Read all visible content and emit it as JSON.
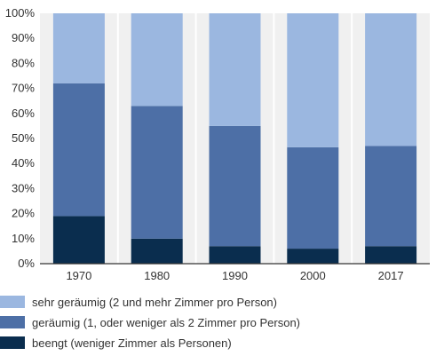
{
  "chart_data": {
    "type": "bar",
    "stacked": true,
    "categories": [
      "1970",
      "1980",
      "1990",
      "2000",
      "2017"
    ],
    "series": [
      {
        "name": "beengt (weniger Zimmer als Personen)",
        "color": "#0a2d4e",
        "values": [
          19,
          10,
          7,
          6,
          7
        ]
      },
      {
        "name": "geräumig (1, oder weniger als 2 Zimmer pro Person)",
        "color": "#4d6fa6",
        "values": [
          53,
          53,
          48,
          40.5,
          40
        ]
      },
      {
        "name": "sehr geräumig (2 und mehr Zimmer pro Person)",
        "color": "#9bb7e0",
        "values": [
          28,
          37,
          45,
          53.5,
          53
        ]
      }
    ],
    "legend_order": [
      2,
      1,
      0
    ],
    "ylim": [
      0,
      100
    ],
    "yticks": [
      0,
      10,
      20,
      30,
      40,
      50,
      60,
      70,
      80,
      90,
      100
    ],
    "ytick_labels": [
      "0%",
      "10%",
      "20%",
      "30%",
      "40%",
      "50%",
      "60%",
      "70%",
      "80%",
      "90%",
      "100%"
    ],
    "grid": "vertical",
    "legend_position": "bottom",
    "plot_background": "#f0f0f0",
    "title": "",
    "xlabel": "",
    "ylabel": ""
  }
}
